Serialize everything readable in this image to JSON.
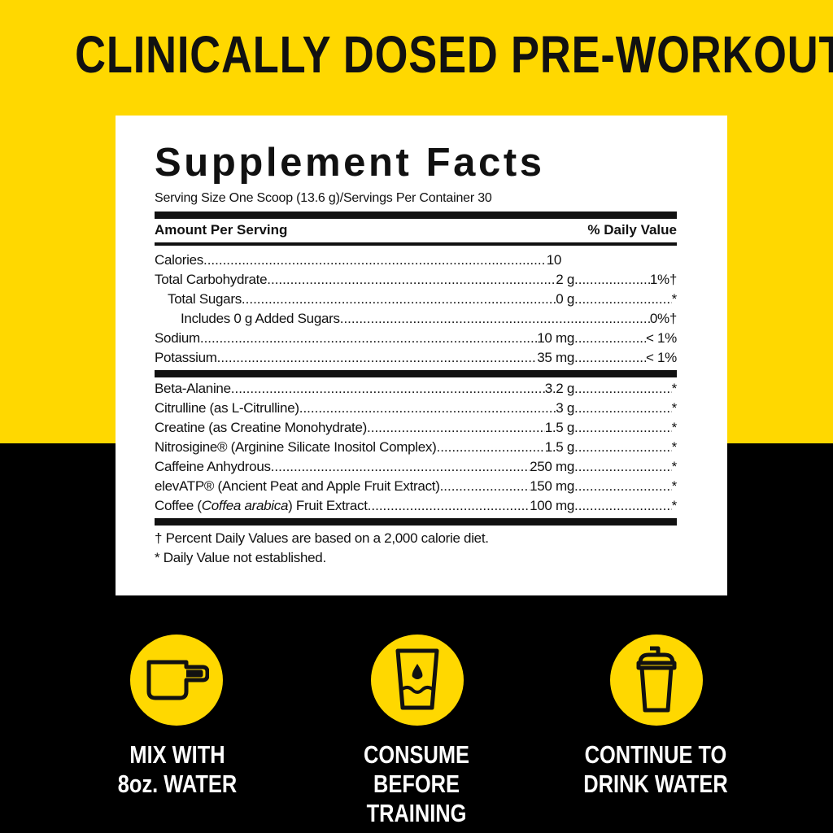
{
  "headline": "CLINICALLY DOSED PRE-WORKOUT",
  "colors": {
    "accent_yellow": "#FFD800",
    "black": "#000000"
  },
  "facts": {
    "title": "Supplement Facts",
    "serving": "Serving Size One Scoop (13.6 g)/Servings Per Container 30",
    "header_left": "Amount Per Serving",
    "header_right": "% Daily Value",
    "nutrients": [
      {
        "label": "Calories",
        "amount": "10",
        "dv": ""
      },
      {
        "label": "Total Carbohydrate",
        "amount": "2 g",
        "dv": "1%†"
      },
      {
        "label": "Total Sugars",
        "amount": "0 g",
        "dv": "*"
      },
      {
        "label": "Includes 0 g Added Sugars",
        "amount": "",
        "dv": "0%†"
      },
      {
        "label": "Sodium",
        "amount": "10 mg",
        "dv": "< 1%"
      },
      {
        "label": "Potassium",
        "amount": "35 mg",
        "dv": "< 1%"
      }
    ],
    "ingredients": [
      {
        "label": "Beta-Alanine",
        "amount": "3.2 g",
        "dv": "*"
      },
      {
        "label": "Citrulline (as L-Citrulline)",
        "amount": "3 g",
        "dv": "*"
      },
      {
        "label": "Creatine (as Creatine Monohydrate)",
        "amount": "1.5 g",
        "dv": "*"
      },
      {
        "label": "Nitrosigine® (Arginine Silicate Inositol Complex)",
        "amount": "1.5 g",
        "dv": "*"
      },
      {
        "label": "Caffeine Anhydrous",
        "amount": "250 mg",
        "dv": "*"
      },
      {
        "label": "elevATP® (Ancient Peat and Apple Fruit Extract)",
        "amount": "150 mg",
        "dv": "*"
      },
      {
        "label_pre": "Coffee (",
        "label_italic": "Coffea arabica",
        "label_post": ") Fruit Extract",
        "amount": "100 mg",
        "dv": "*"
      }
    ],
    "footnote1": "† Percent Daily Values are based on a 2,000 calorie diet.",
    "footnote2": "* Daily Value not established."
  },
  "steps": [
    {
      "icon": "scoop-icon",
      "line1": "MIX WITH",
      "line2": "8oz. WATER"
    },
    {
      "icon": "water-glass-icon",
      "line1": "CONSUME BEFORE",
      "line2": "TRAINING"
    },
    {
      "icon": "shaker-bottle-icon",
      "line1": "CONTINUE TO",
      "line2": "DRINK WATER"
    }
  ]
}
